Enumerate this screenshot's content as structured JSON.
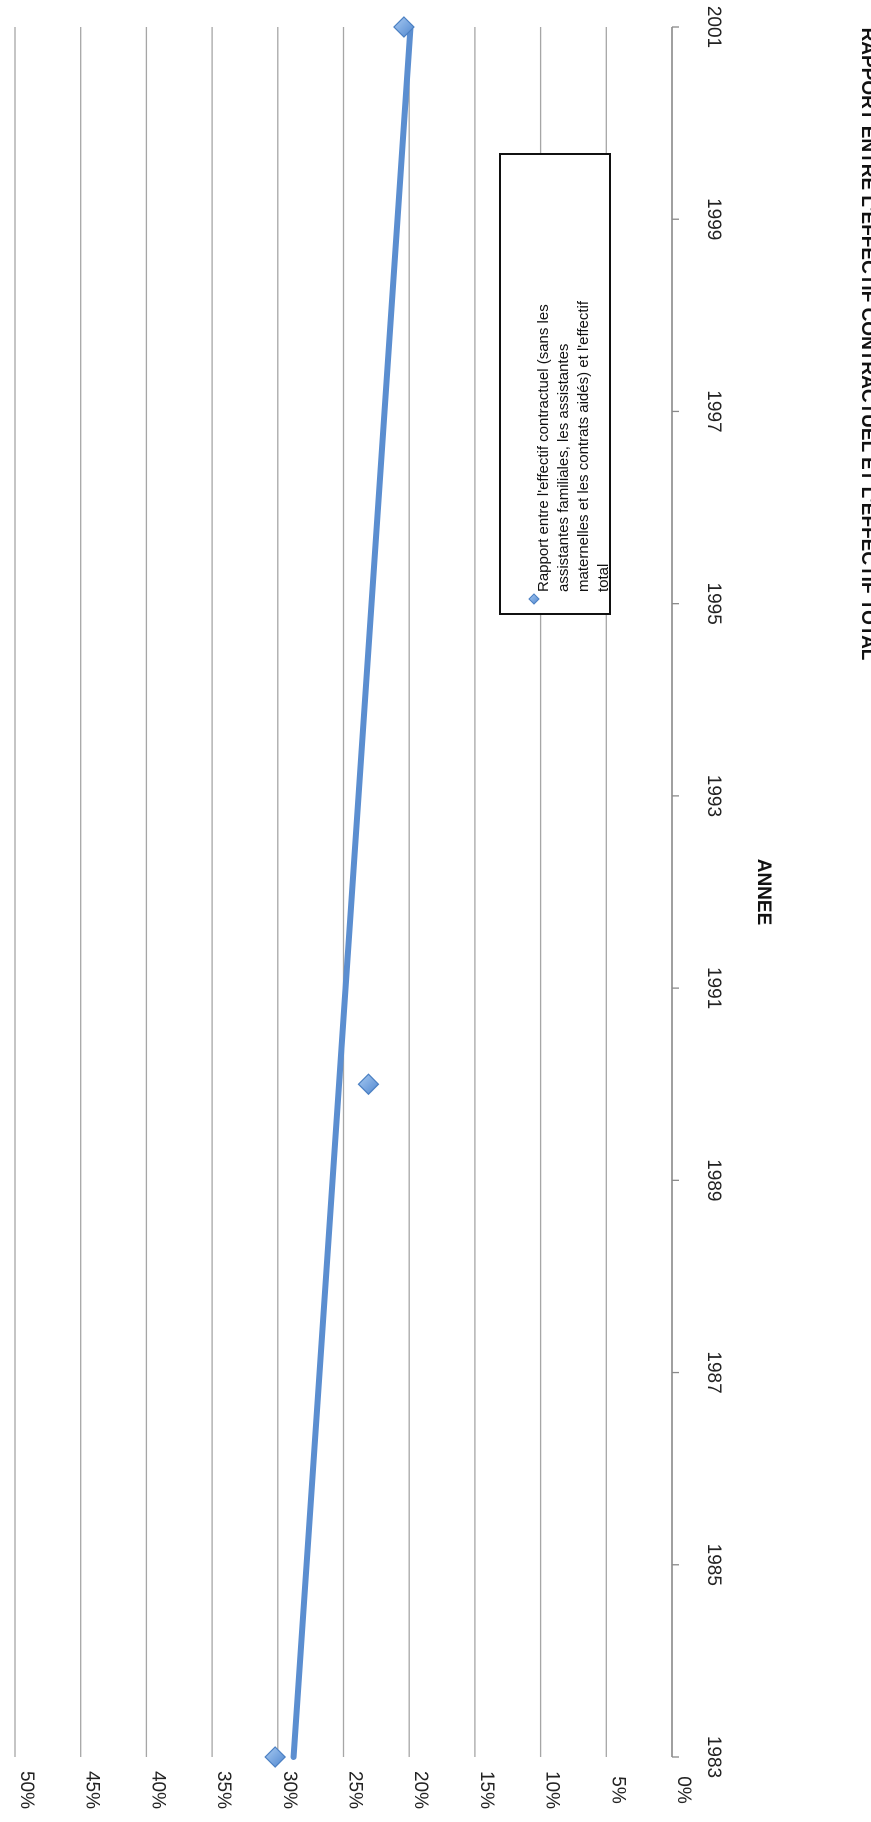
{
  "chart_data": {
    "type": "scatter",
    "orientation": "rotated 90 degrees clockwise",
    "xlabel": "ANNEE",
    "ylabel": "RAPPORT ENTRE L'EFFECTIF CONTRACTUEL ET L'EFFECTIF TOTAL",
    "xlim": [
      1983,
      2001
    ],
    "x_ticks": [
      "1983",
      "1985",
      "1987",
      "1989",
      "1991",
      "1993",
      "1995",
      "1997",
      "1999",
      "2001"
    ],
    "ylim": [
      0,
      0.5
    ],
    "y_ticks": [
      "0%",
      "5%",
      "10%",
      "15%",
      "20%",
      "25%",
      "30%",
      "35%",
      "40%",
      "45%",
      "50%"
    ],
    "grid": true,
    "legend_position": "right",
    "series": [
      {
        "name": "Rapport entre l'effectif contractuel (sans les assistantes familiales, les assistantes maternelles et les contrats aidés) et l'effectif total",
        "x": [
          1983,
          1990,
          2001
        ],
        "y": [
          0.302,
          0.231,
          0.204
        ],
        "marker": "diamond",
        "color": "#6fa3e0"
      }
    ],
    "trendline": {
      "type": "linear",
      "x": [
        1983,
        2001
      ],
      "y": [
        0.288,
        0.199
      ],
      "color": "#5b8ed0"
    }
  }
}
